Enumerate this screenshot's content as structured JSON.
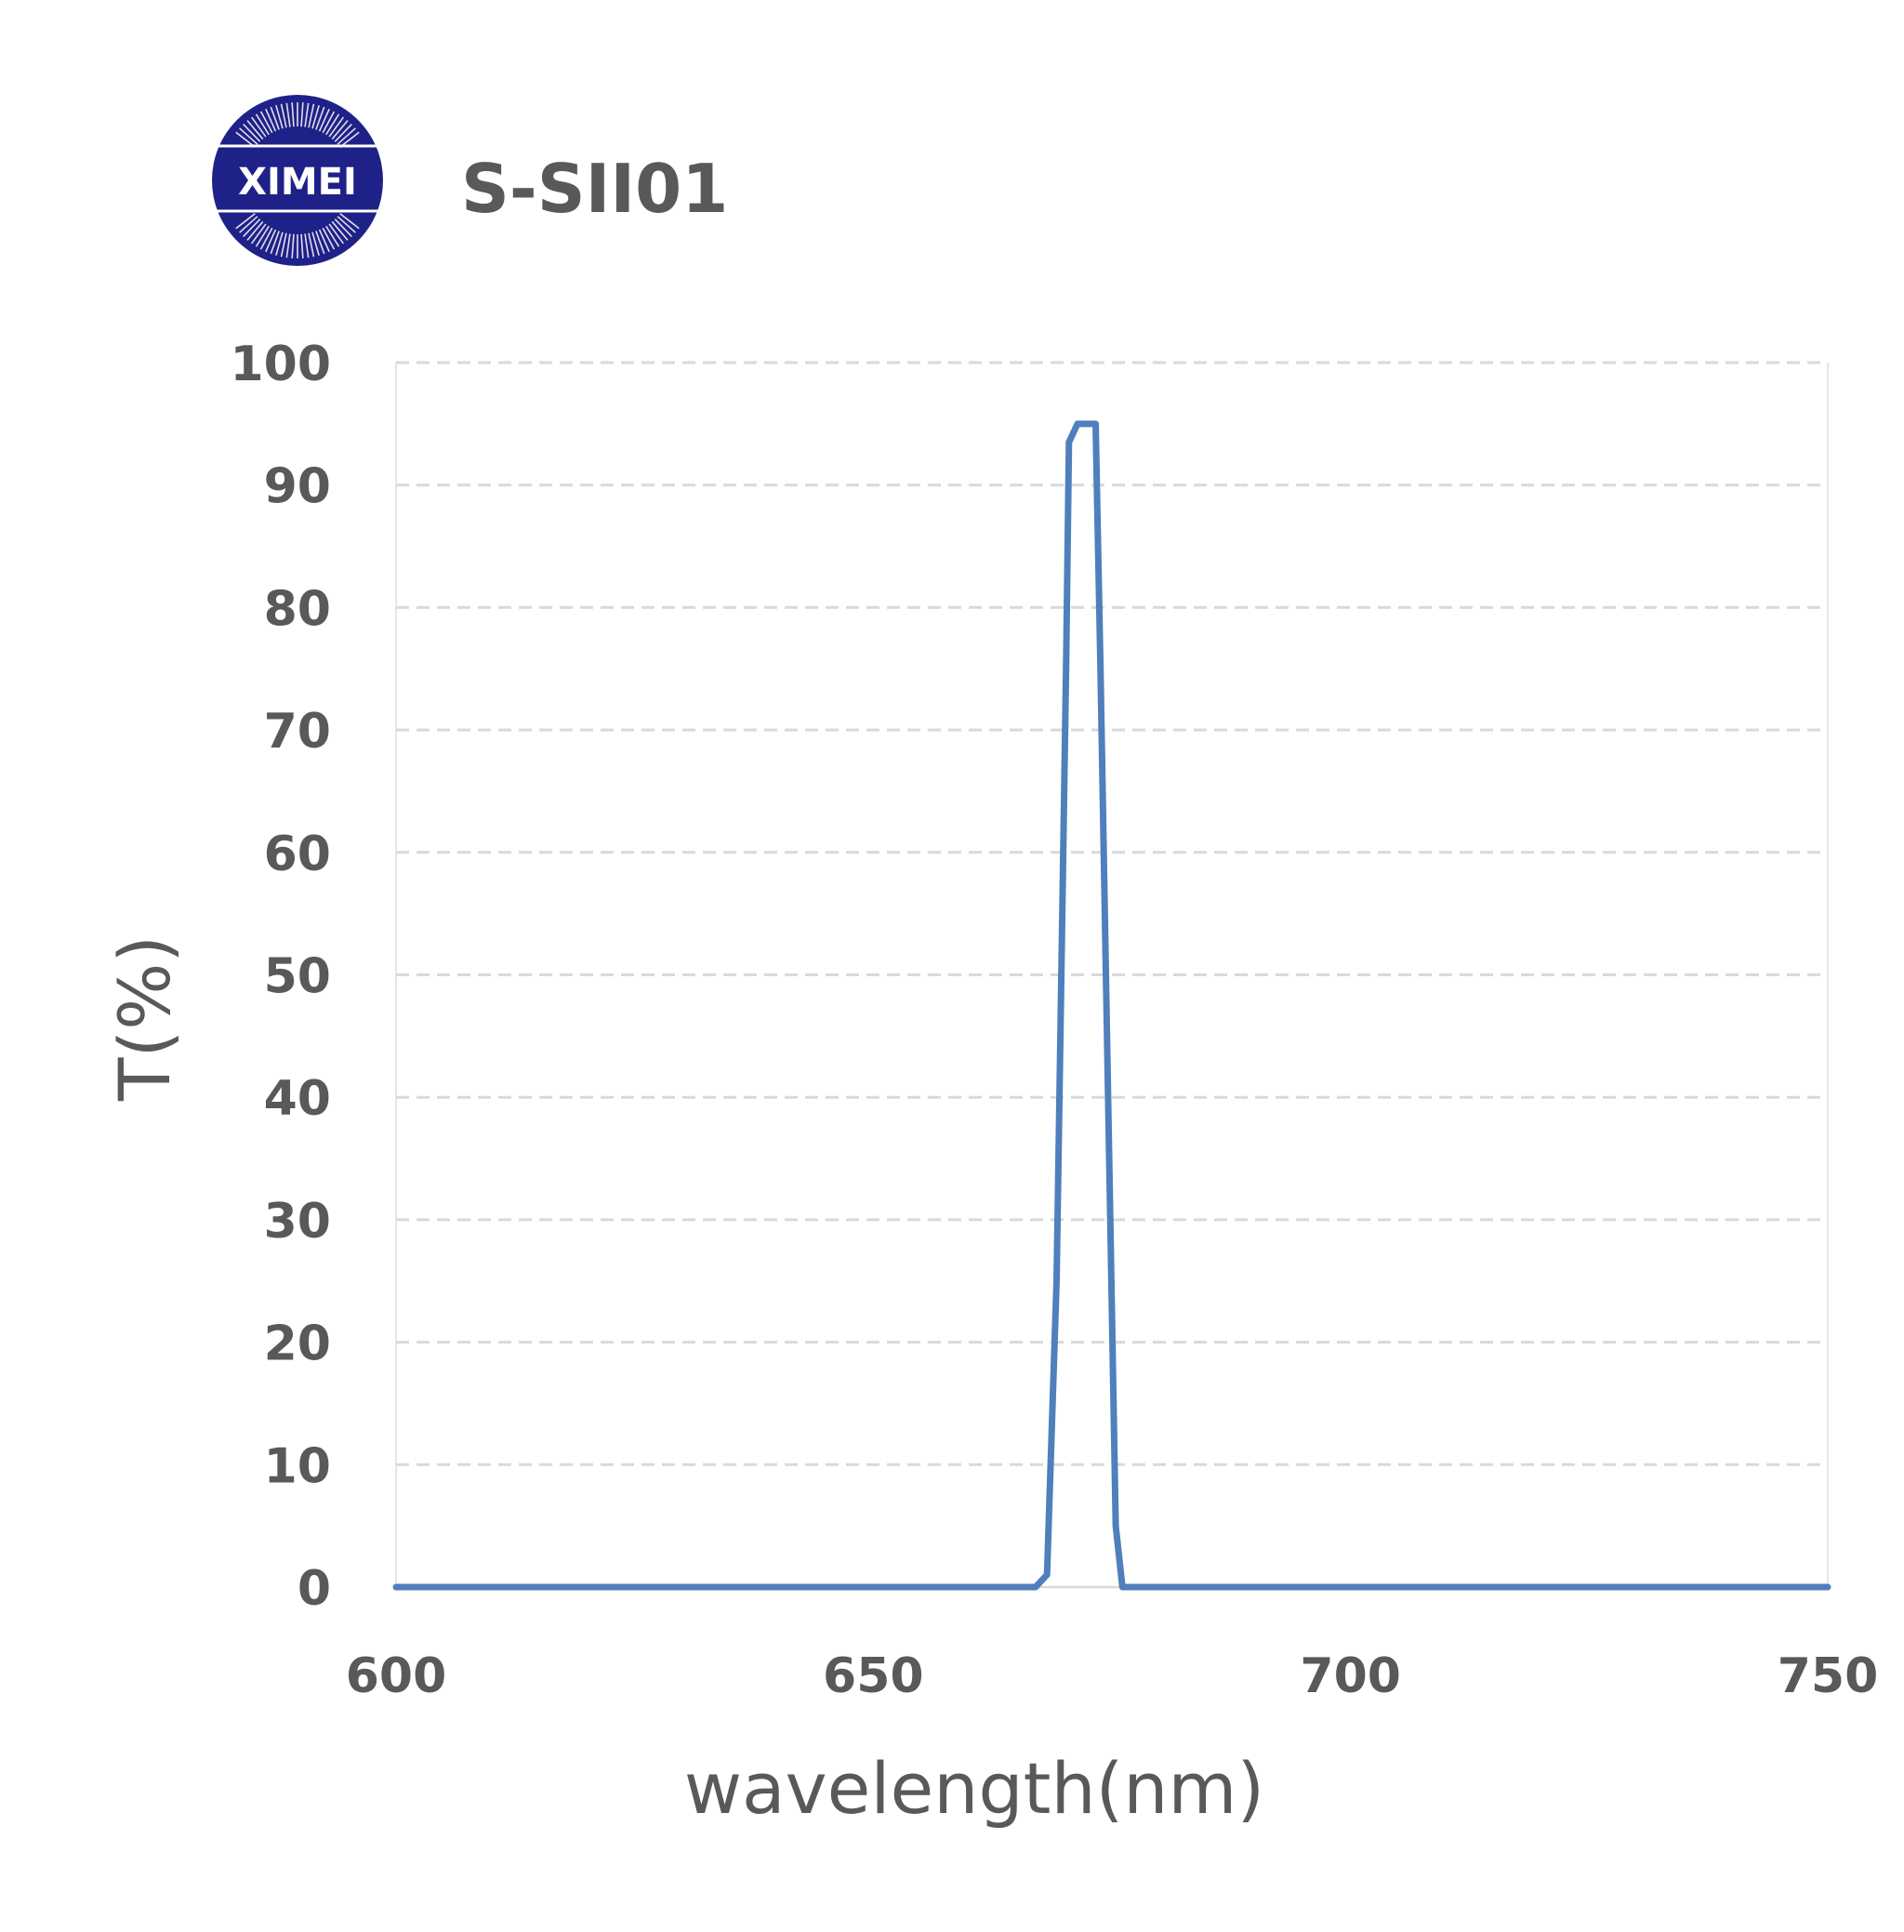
{
  "logo": {
    "text": "XIMEI",
    "color": "#1e2187"
  },
  "chart_data": {
    "type": "line",
    "title": "S-SII01",
    "xlabel": "wavelength(nm)",
    "ylabel": "T(%)",
    "xlim": [
      600,
      750
    ],
    "ylim": [
      0,
      100
    ],
    "xticks": [
      600,
      650,
      700,
      750
    ],
    "yticks": [
      0,
      10,
      20,
      30,
      40,
      50,
      60,
      70,
      80,
      90,
      100
    ],
    "grid": "horizontal dashed",
    "line_color": "#4f7fbc",
    "series": [
      {
        "x": [
          600,
          667,
          668.2,
          669.2,
          670.2,
          670.5,
          671.4,
          672.5,
          673.3,
          673.8,
          675.4,
          676.1,
          677,
          750
        ],
        "y": [
          0,
          0,
          1,
          25,
          75,
          93.5,
          95,
          95,
          95,
          75,
          5,
          0,
          0,
          0
        ]
      }
    ]
  }
}
